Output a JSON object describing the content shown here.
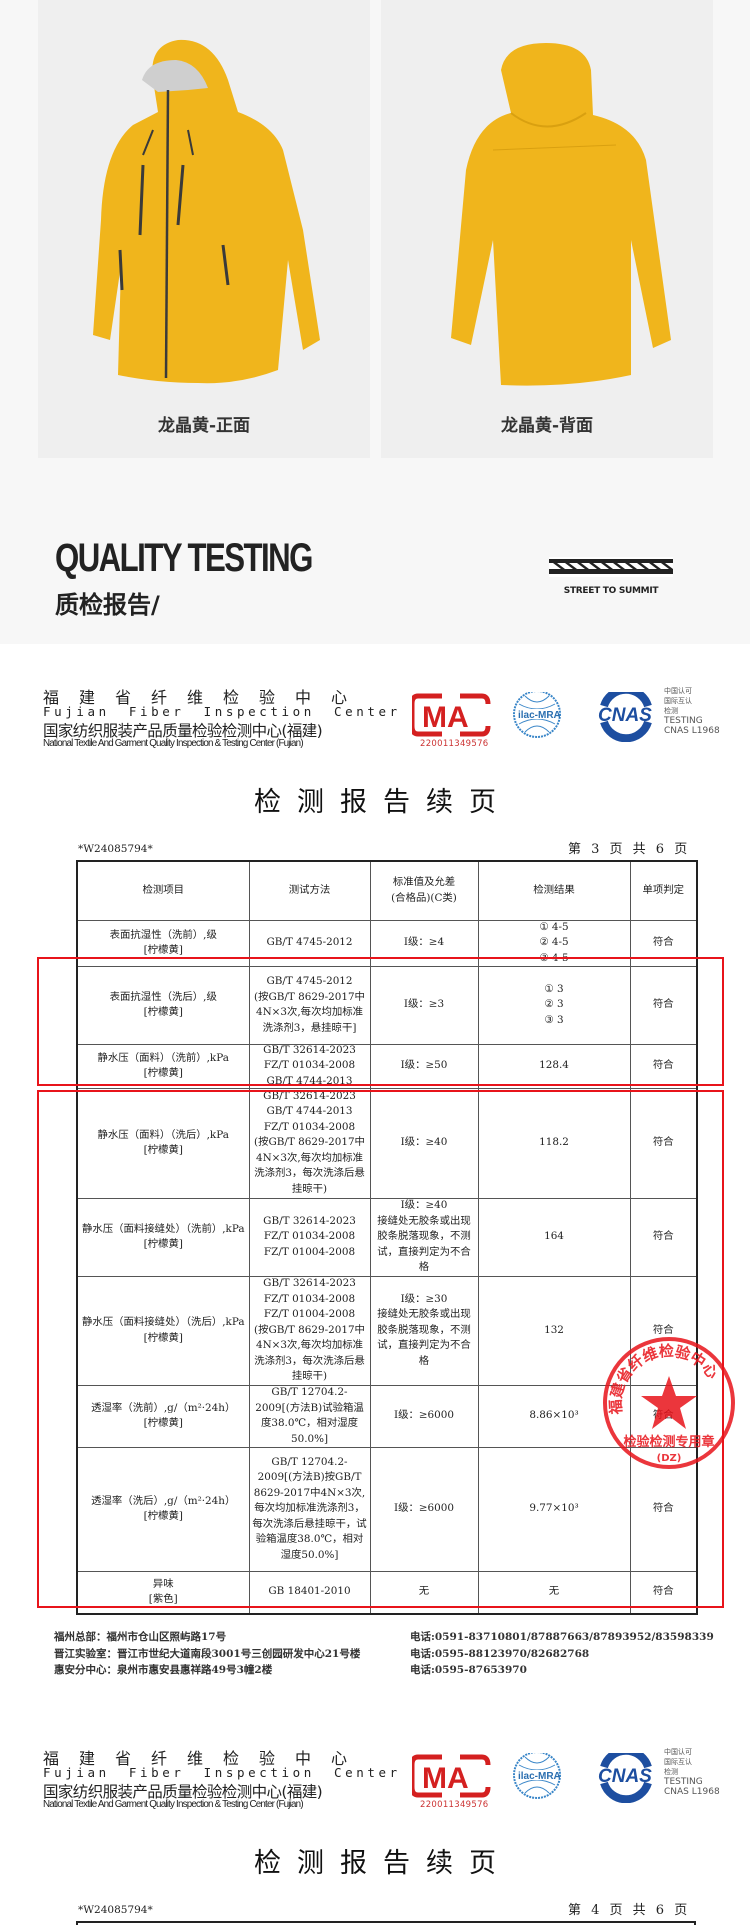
{
  "products": [
    {
      "label": "龙晶黄-正面",
      "view": "front"
    },
    {
      "label": "龙晶黄-背面",
      "view": "back"
    }
  ],
  "jacket_color": "#f0b51c",
  "section": {
    "title_en": "QUALITY TESTING",
    "title_cn": "质检报告/",
    "brand_slogan": "STREET TO SUMMIT"
  },
  "letterhead": {
    "name_cn": "福建省纤维检验中心",
    "name_en": "Fujian Fiber Inspection Center",
    "national_cn": "国家纺织服装产品质量检验检测中心(福建)",
    "national_en": "National Textile And Garment Quality Inspection & Testing Center (Fujian)",
    "cma_number": "220011349576",
    "cma_logo": "MA",
    "ilac_logo": "ilac-MRA",
    "cnas_logo": "CNAS",
    "cnas_lines": [
      "中国认可",
      "国际互认",
      "检测",
      "TESTING",
      "CNAS L1968"
    ]
  },
  "report_title": "检测报告续页",
  "report_no": "*W24085794*",
  "page_info": "第 3 页 共 6 页",
  "page_info_next": "第 4 页 共 6 页",
  "table": {
    "headers": [
      "检测项目",
      "测试方法",
      "标准值及允差\n(合格品)(C类)",
      "检测结果",
      "单项判定"
    ],
    "rows": [
      [
        "表面抗湿性（洗前）,级\n[柠檬黄]",
        "GB/T 4745-2012",
        "I级：≥4",
        "① 4-5\n② 4-5\n③ 4-5",
        "符合"
      ],
      [
        "表面抗湿性（洗后）,级\n[柠檬黄]",
        "GB/T 4745-2012\n(按GB/T 8629-2017中4N×3次,每次均加标准洗涤剂3，悬挂晾干]",
        "I级：≥3",
        "① 3\n② 3\n③ 3",
        "符合"
      ],
      [
        "静水压（面料）（洗前）,kPa\n[柠檬黄]",
        "GB/T 32614-2023\nFZ/T 01034-2008\nGB/T 4744-2013",
        "I级：≥50",
        "128.4",
        "符合"
      ],
      [
        "静水压（面料）（洗后）,kPa\n[柠檬黄]",
        "GB/T 32614-2023\nGB/T 4744-2013\nFZ/T 01034-2008\n(按GB/T 8629-2017中4N×3次,每次均加标准洗涤剂3，每次洗涤后悬挂晾干)",
        "I级：≥40",
        "118.2",
        "符合"
      ],
      [
        "静水压（面料接缝处）（洗前）,kPa\n[柠檬黄]",
        "GB/T 32614-2023\nFZ/T 01034-2008\nFZ/T 01004-2008",
        "I级：≥40\n接缝处无胶条或出现胶条脱落现象，不测试，直接判定为不合格",
        "164",
        "符合"
      ],
      [
        "静水压（面料接缝处）（洗后）,kPa\n[柠檬黄]",
        "GB/T 32614-2023\nFZ/T 01034-2008\nFZ/T 01004-2008\n(按GB/T 8629-2017中4N×3次,每次均加标准洗涤剂3，每次洗涤后悬挂晾干)",
        "I级：≥30\n接缝处无胶条或出现胶条脱落现象，不测试，直接判定为不合格",
        "132",
        "符合"
      ],
      [
        "透湿率（洗前）,g/（m²·24h）\n[柠檬黄]",
        "GB/T 12704.2-2009[(方法B)试验箱温度38.0℃，相对湿度50.0%]",
        "I级：≥6000",
        "8.86×10³",
        "符合"
      ],
      [
        "透湿率（洗后）,g/（m²·24h）\n[柠檬黄]",
        "GB/T 12704.2-2009[(方法B)按GB/T 8629-2017中4N×3次,每次均加标准洗涤剂3，每次洗涤后悬挂晾干，试验箱温度38.0℃，相对湿度50.0%]",
        "I级：≥6000",
        "9.77×10³",
        "符合"
      ],
      [
        "异味\n[紫色]",
        "GB 18401-2010",
        "无",
        "无",
        "符合"
      ]
    ]
  },
  "stamp": {
    "text": "福建省纤维检验中心",
    "bottom_text": "检验检测专用章",
    "code": "(DZ)",
    "color": "#e8141b"
  },
  "footer": {
    "left": [
      "福州总部：福州市仓山区照屿路17号",
      "晋江实验室：晋江市世纪大道南段3001号三创园研发中心21号楼",
      "惠安分中心：泉州市惠安县惠祥路49号3幢2楼"
    ],
    "right": [
      "电话:0591-83710801/87887663/87893952/83598339",
      "电话:0595-88123970/82682768",
      "电话:0595-87653970"
    ]
  },
  "highlight_color": "#e8141b"
}
